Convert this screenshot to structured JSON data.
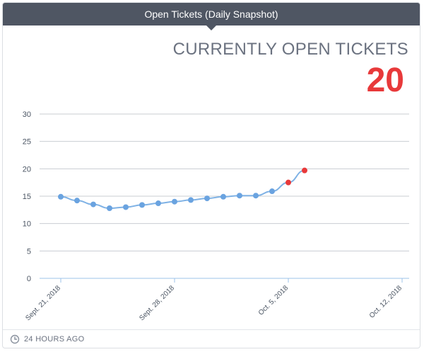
{
  "widget": {
    "title": "Open Tickets (Daily Snapshot)",
    "kpi_label": "CURRENTLY OPEN TICKETS",
    "kpi_value": "20",
    "footer_icon": "clock-icon",
    "footer_text": "24 HOURS AGO",
    "colors": {
      "header": "#4f5663",
      "line": "#7fb2e5",
      "point": "#6aa3e0",
      "highlight": "#e8393a",
      "kpi": "#e8393a"
    }
  },
  "chart_data": {
    "type": "line",
    "x": [
      "Sept. 21, 2018",
      "Sept. 22, 2018",
      "Sept. 23, 2018",
      "Sept. 24, 2018",
      "Sept. 25, 2018",
      "Sept. 26, 2018",
      "Sept. 27, 2018",
      "Sept. 28, 2018",
      "Sept. 29, 2018",
      "Sept. 30, 2018",
      "Oct. 1, 2018",
      "Oct. 2, 2018",
      "Oct. 3, 2018",
      "Oct. 4, 2018",
      "Oct. 5, 2018",
      "Oct. 6, 2018",
      "Oct. 7, 2018",
      "Oct. 8, 2018",
      "Oct. 9, 2018",
      "Oct. 10, 2018",
      "Oct. 11, 2018",
      "Oct. 12, 2018"
    ],
    "points": [
      {
        "x": "Sept. 21, 2018",
        "y": 14.9
      },
      {
        "x": "Sept. 22, 2018",
        "y": 14.2
      },
      {
        "x": "Sept. 23, 2018",
        "y": 13.5
      },
      {
        "x": "Sept. 24, 2018",
        "y": 12.8
      },
      {
        "x": "Sept. 25, 2018",
        "y": 13.0
      },
      {
        "x": "Sept. 26, 2018",
        "y": 13.4
      },
      {
        "x": "Sept. 27, 2018",
        "y": 13.7
      },
      {
        "x": "Sept. 28, 2018",
        "y": 14.0
      },
      {
        "x": "Sept. 29, 2018",
        "y": 14.3
      },
      {
        "x": "Sept. 30, 2018",
        "y": 14.6
      },
      {
        "x": "Oct. 1, 2018",
        "y": 14.9
      },
      {
        "x": "Oct. 2, 2018",
        "y": 15.1
      },
      {
        "x": "Oct. 3, 2018",
        "y": 15.1
      },
      {
        "x": "Oct. 4, 2018",
        "y": 15.9
      },
      {
        "x": "Oct. 5, 2018",
        "y": 17.5,
        "highlight": true
      },
      {
        "x": "Oct. 6, 2018",
        "y": 19.7,
        "highlight": true
      }
    ],
    "xticks": [
      "Sept. 21, 2018",
      "Sept. 28, 2018",
      "Oct. 5, 2018",
      "Oct. 12, 2018"
    ],
    "yticks": [
      0,
      5,
      10,
      15,
      20,
      25,
      30
    ],
    "ylim": [
      0,
      30
    ],
    "grid": true,
    "title": "",
    "xlabel": "",
    "ylabel": ""
  }
}
